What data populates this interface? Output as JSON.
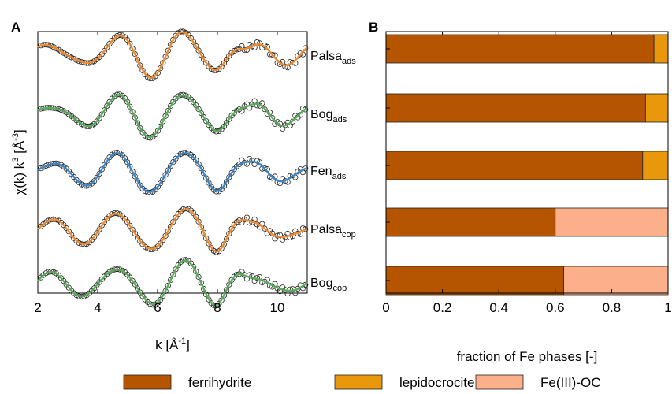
{
  "chart_data": [
    {
      "panel": "A",
      "type": "line",
      "xlabel": "k [Å",
      "xlabel_sup": "-1",
      "xlabel_end": "]",
      "ylabel": "χ(k) k",
      "ylabel_sup": "3",
      "ylabel_mid": " [Å",
      "ylabel_sup2": "-3",
      "ylabel_end": "]",
      "xlim": [
        2,
        11
      ],
      "xticks": [
        2,
        4,
        6,
        8,
        10
      ],
      "markers": "data (open circles)",
      "series": [
        {
          "name": "Palsa",
          "subscript": "ads",
          "fit_color": "#f08a2c"
        },
        {
          "name": "Bog",
          "subscript": "ads",
          "fit_color": "#5aab5a"
        },
        {
          "name": "Fen",
          "subscript": "ads",
          "fit_color": "#3d86c6"
        },
        {
          "name": "Palsa",
          "subscript": "cop",
          "fit_color": "#f08a2c"
        },
        {
          "name": "Bog",
          "subscript": "cop",
          "fit_color": "#5aab5a"
        }
      ]
    },
    {
      "panel": "B",
      "type": "bar",
      "orientation": "horizontal",
      "stacked": true,
      "xlabel": "fraction of Fe phases [-]",
      "xlim": [
        0,
        1
      ],
      "xticks": [
        0,
        0.2,
        0.4,
        0.6,
        0.8,
        1
      ],
      "xtick_labels": [
        "0",
        "0.2",
        "0.4",
        "0.6",
        "0.8",
        "1"
      ],
      "categories": [
        "Palsa ads",
        "Bog ads",
        "Fen ads",
        "Palsa cop",
        "Bog cop"
      ],
      "series": [
        {
          "name": "ferrihydrite",
          "color": "#b65500",
          "values": [
            0.95,
            0.92,
            0.91,
            0.6,
            0.63
          ]
        },
        {
          "name": "lepidocrocite",
          "color": "#e8980a",
          "values": [
            0.05,
            0.08,
            0.09,
            0.0,
            0.0
          ]
        },
        {
          "name": "Fe(III)-OC",
          "color": "#fbb08a",
          "values": [
            0.0,
            0.0,
            0.0,
            0.4,
            0.37
          ]
        }
      ]
    }
  ],
  "legend": {
    "items": [
      {
        "label": "ferrihydrite",
        "color": "#b65500"
      },
      {
        "label": "lepidocrocite",
        "color": "#e8980a"
      },
      {
        "label": "Fe(III)-OC",
        "color": "#fbb08a"
      }
    ]
  }
}
